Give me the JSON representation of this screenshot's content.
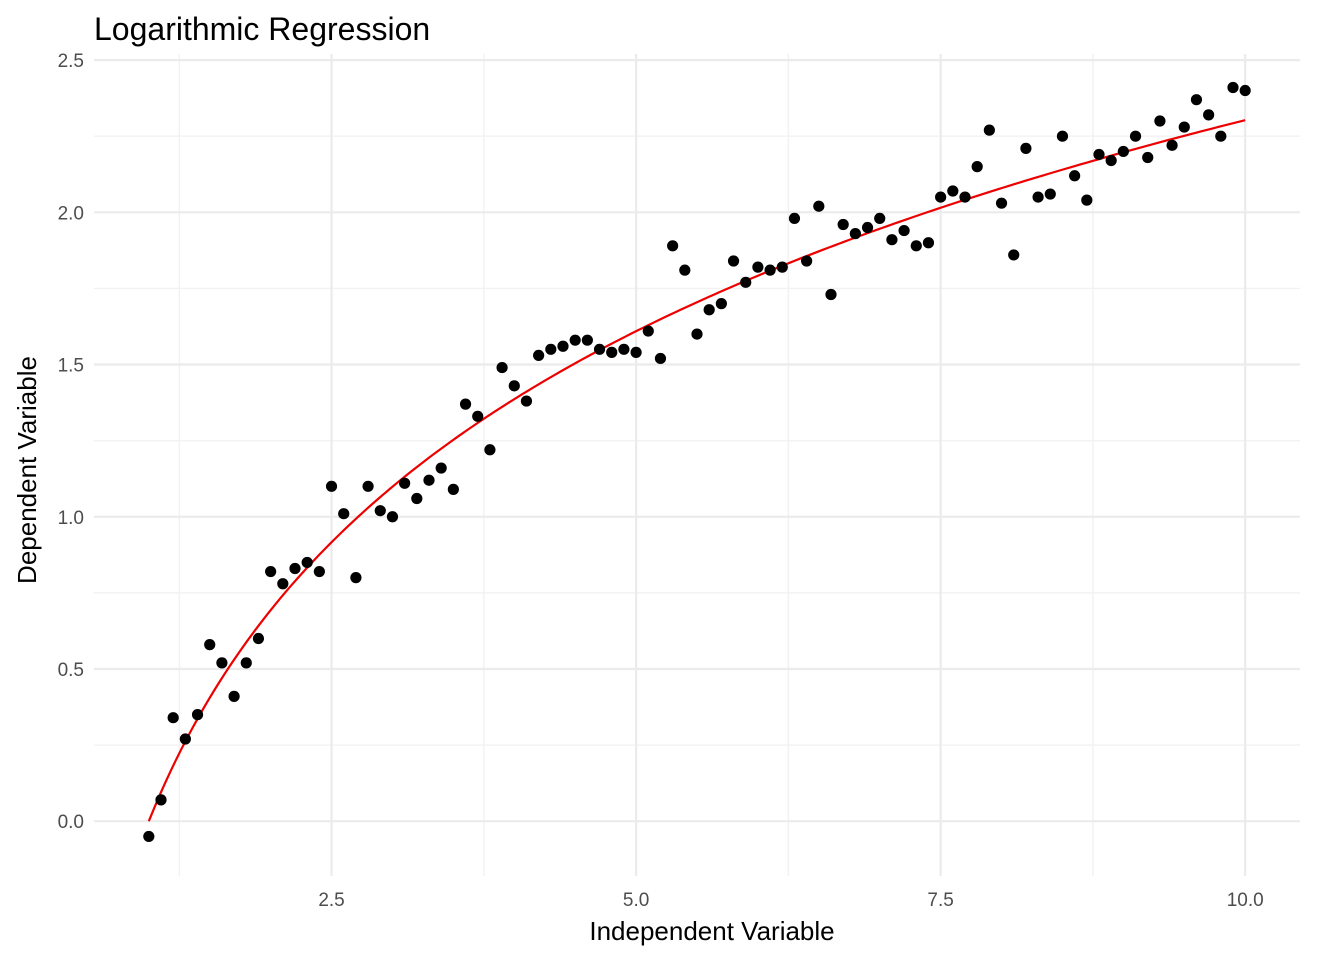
{
  "chart_data": {
    "type": "scatter",
    "title": "Logarithmic Regression",
    "xlabel": "Independent Variable",
    "ylabel": "Dependent Variable",
    "xlim": [
      0.55,
      10.45
    ],
    "ylim": [
      -0.18,
      2.52
    ],
    "x_ticks": [
      2.5,
      5.0,
      7.5,
      10.0
    ],
    "x_tick_labels": [
      "2.5",
      "5.0",
      "7.5",
      "10.0"
    ],
    "y_ticks": [
      0.0,
      0.5,
      1.0,
      1.5,
      2.0,
      2.5
    ],
    "y_tick_labels": [
      "0.0",
      "0.5",
      "1.0",
      "1.5",
      "2.0",
      "2.5"
    ],
    "grid": true,
    "legend": "none",
    "colors": {
      "points": "#000000",
      "fit_line": "#ee0000"
    },
    "points": {
      "x": [
        1.0,
        1.1,
        1.2,
        1.3,
        1.4,
        1.5,
        1.6,
        1.7,
        1.8,
        1.9,
        2.0,
        2.1,
        2.2,
        2.3,
        2.4,
        2.5,
        2.6,
        2.7,
        2.8,
        2.9,
        3.0,
        3.1,
        3.2,
        3.3,
        3.4,
        3.5,
        3.6,
        3.7,
        3.8,
        3.9,
        4.0,
        4.1,
        4.2,
        4.3,
        4.4,
        4.5,
        4.6,
        4.7,
        4.8,
        4.9,
        5.0,
        5.1,
        5.2,
        5.3,
        5.4,
        5.5,
        5.6,
        5.7,
        5.8,
        5.9,
        6.0,
        6.1,
        6.2,
        6.3,
        6.4,
        6.5,
        6.6,
        6.7,
        6.8,
        6.9,
        7.0,
        7.1,
        7.2,
        7.3,
        7.4,
        7.5,
        7.6,
        7.7,
        7.8,
        7.9,
        8.0,
        8.1,
        8.2,
        8.3,
        8.4,
        8.5,
        8.6,
        8.7,
        8.8,
        8.9,
        9.0,
        9.1,
        9.2,
        9.3,
        9.4,
        9.5,
        9.6,
        9.7,
        9.8,
        9.9,
        10.0
      ],
      "y": [
        -0.05,
        0.07,
        0.34,
        0.27,
        0.35,
        0.58,
        0.52,
        0.41,
        0.52,
        0.6,
        0.82,
        0.78,
        0.83,
        0.85,
        0.82,
        1.1,
        1.01,
        0.8,
        1.1,
        1.02,
        1.0,
        1.11,
        1.06,
        1.12,
        1.16,
        1.09,
        1.37,
        1.33,
        1.22,
        1.49,
        1.43,
        1.38,
        1.53,
        1.55,
        1.56,
        1.58,
        1.58,
        1.55,
        1.54,
        1.55,
        1.54,
        1.61,
        1.52,
        1.89,
        1.81,
        1.6,
        1.68,
        1.7,
        1.84,
        1.77,
        1.82,
        1.81,
        1.82,
        1.98,
        1.84,
        2.02,
        1.73,
        1.96,
        1.93,
        1.95,
        1.98,
        1.91,
        1.94,
        1.89,
        1.9,
        2.05,
        2.07,
        2.05,
        2.15,
        2.27,
        2.03,
        1.86,
        2.21,
        2.05,
        2.06,
        2.25,
        2.12,
        2.04,
        2.19,
        2.17,
        2.2,
        2.25,
        2.18,
        2.3,
        2.22,
        2.28,
        2.37,
        2.32,
        2.25,
        2.41,
        2.4
      ]
    },
    "fit": {
      "model": "logarithmic",
      "intercept": 0.0,
      "slope": 1.0,
      "x_range": [
        1.0,
        10.0
      ]
    }
  }
}
